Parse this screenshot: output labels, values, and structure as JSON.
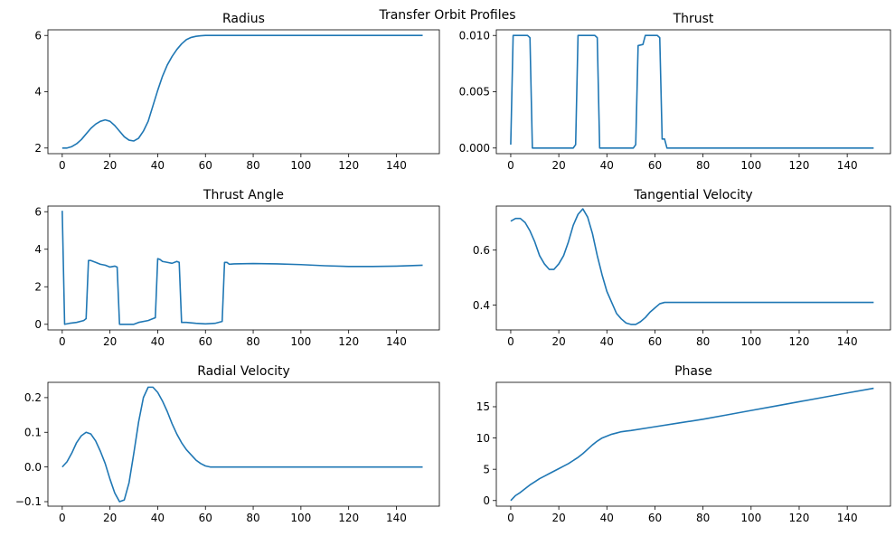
{
  "figure_title": "Transfer Orbit Profiles",
  "line_color": "#1f77b4",
  "chart_data": [
    {
      "type": "line",
      "title": "Radius",
      "xlim": [
        -6,
        158
      ],
      "ylim": [
        1.8,
        6.2
      ],
      "xticks": [
        0,
        20,
        40,
        60,
        80,
        100,
        120,
        140
      ],
      "yticks": [
        2,
        4,
        6
      ],
      "ytick_labels": [
        "2",
        "4",
        "6"
      ],
      "series": [
        {
          "name": "Radius",
          "x": [
            0,
            2,
            4,
            6,
            8,
            10,
            12,
            14,
            16,
            18,
            20,
            22,
            24,
            26,
            28,
            30,
            32,
            34,
            36,
            38,
            40,
            42,
            44,
            46,
            48,
            50,
            52,
            54,
            56,
            58,
            60,
            62,
            64,
            70,
            80,
            100,
            120,
            140,
            151
          ],
          "y": [
            2.0,
            2.0,
            2.05,
            2.15,
            2.3,
            2.5,
            2.7,
            2.85,
            2.95,
            3.0,
            2.95,
            2.8,
            2.6,
            2.4,
            2.28,
            2.25,
            2.35,
            2.6,
            2.95,
            3.5,
            4.05,
            4.55,
            4.95,
            5.25,
            5.5,
            5.7,
            5.85,
            5.93,
            5.97,
            5.99,
            6.0,
            6.0,
            6.0,
            6.0,
            6.0,
            6.0,
            6.0,
            6.0,
            6.0
          ]
        }
      ]
    },
    {
      "type": "line",
      "title": "Thrust",
      "xlim": [
        -6,
        158
      ],
      "ylim": [
        -0.0005,
        0.0105
      ],
      "xticks": [
        0,
        20,
        40,
        60,
        80,
        100,
        120,
        140
      ],
      "yticks": [
        0,
        0.005,
        0.01
      ],
      "ytick_labels": [
        "0.000",
        "0.005",
        "0.010"
      ],
      "series": [
        {
          "name": "Thrust",
          "x": [
            0,
            1,
            2,
            7,
            8,
            9,
            26,
            27,
            28,
            35,
            36,
            37,
            51,
            52,
            53,
            55,
            56,
            57,
            61,
            62,
            63,
            64,
            65,
            70,
            100,
            151
          ],
          "y": [
            0.0003,
            0.01,
            0.01,
            0.01,
            0.0098,
            0.0,
            0.0,
            0.0003,
            0.01,
            0.01,
            0.0098,
            0.0,
            0.0,
            0.0003,
            0.0091,
            0.0092,
            0.01,
            0.01,
            0.01,
            0.0098,
            0.0008,
            0.0008,
            0.0,
            0.0,
            0.0,
            0.0
          ]
        }
      ]
    },
    {
      "type": "line",
      "title": "Thrust Angle",
      "xlim": [
        -6,
        158
      ],
      "ylim": [
        -0.3,
        6.3
      ],
      "xticks": [
        0,
        20,
        40,
        60,
        80,
        100,
        120,
        140
      ],
      "yticks": [
        0,
        2,
        4,
        6
      ],
      "ytick_labels": [
        "0",
        "2",
        "4",
        "6"
      ],
      "series": [
        {
          "name": "Thrust Angle",
          "x": [
            0,
            1,
            3,
            6,
            9,
            10,
            11,
            12,
            14,
            16,
            18,
            20,
            22,
            23,
            24,
            25,
            28,
            30,
            32,
            36,
            38,
            39,
            40,
            41,
            42,
            44,
            46,
            48,
            49,
            50,
            52,
            56,
            60,
            64,
            67,
            68,
            69,
            70,
            72,
            80,
            90,
            100,
            110,
            120,
            130,
            140,
            151
          ],
          "y": [
            6.05,
            0.0,
            0.05,
            0.1,
            0.2,
            0.3,
            3.4,
            3.4,
            3.3,
            3.2,
            3.15,
            3.05,
            3.1,
            3.05,
            0.0,
            0.0,
            0.0,
            0.0,
            0.1,
            0.2,
            0.3,
            0.35,
            3.5,
            3.45,
            3.35,
            3.3,
            3.25,
            3.35,
            3.3,
            0.1,
            0.1,
            0.05,
            0.02,
            0.05,
            0.15,
            3.3,
            3.3,
            3.2,
            3.22,
            3.24,
            3.22,
            3.18,
            3.12,
            3.08,
            3.08,
            3.1,
            3.15
          ]
        }
      ]
    },
    {
      "type": "line",
      "title": "Tangential Velocity",
      "xlim": [
        -6,
        158
      ],
      "ylim": [
        0.31,
        0.76
      ],
      "xticks": [
        0,
        20,
        40,
        60,
        80,
        100,
        120,
        140
      ],
      "yticks": [
        0.4,
        0.6
      ],
      "ytick_labels": [
        "0.4",
        "0.6"
      ],
      "series": [
        {
          "name": "Tangential Velocity",
          "x": [
            0,
            1,
            2,
            4,
            6,
            8,
            10,
            12,
            14,
            16,
            18,
            20,
            22,
            24,
            26,
            28,
            30,
            32,
            34,
            36,
            38,
            40,
            42,
            44,
            46,
            48,
            50,
            52,
            54,
            56,
            58,
            60,
            62,
            64,
            70,
            100,
            151
          ],
          "y": [
            0.705,
            0.71,
            0.715,
            0.715,
            0.7,
            0.67,
            0.63,
            0.58,
            0.55,
            0.53,
            0.53,
            0.55,
            0.58,
            0.63,
            0.69,
            0.73,
            0.75,
            0.72,
            0.66,
            0.58,
            0.51,
            0.45,
            0.41,
            0.37,
            0.35,
            0.335,
            0.33,
            0.33,
            0.34,
            0.355,
            0.375,
            0.39,
            0.405,
            0.41,
            0.41,
            0.41,
            0.41
          ]
        }
      ]
    },
    {
      "type": "line",
      "title": "Radial Velocity",
      "xlim": [
        -6,
        158
      ],
      "ylim": [
        -0.113,
        0.244
      ],
      "xticks": [
        0,
        20,
        40,
        60,
        80,
        100,
        120,
        140
      ],
      "yticks": [
        -0.1,
        0,
        0.1,
        0.2
      ],
      "ytick_labels": [
        "−0.1",
        "0.0",
        "0.1",
        "0.2"
      ],
      "series": [
        {
          "name": "Radial Velocity",
          "x": [
            0,
            2,
            4,
            6,
            8,
            10,
            12,
            14,
            16,
            18,
            20,
            22,
            24,
            26,
            28,
            30,
            32,
            34,
            36,
            38,
            40,
            42,
            44,
            46,
            48,
            50,
            52,
            54,
            56,
            58,
            60,
            62,
            64,
            66,
            70,
            100,
            151
          ],
          "y": [
            0.0,
            0.015,
            0.04,
            0.07,
            0.09,
            0.1,
            0.095,
            0.075,
            0.045,
            0.01,
            -0.035,
            -0.075,
            -0.1,
            -0.095,
            -0.045,
            0.04,
            0.13,
            0.2,
            0.23,
            0.23,
            0.215,
            0.19,
            0.16,
            0.125,
            0.095,
            0.07,
            0.05,
            0.035,
            0.02,
            0.01,
            0.003,
            0.0,
            0.0,
            0.0,
            0.0,
            0.0,
            0.0
          ]
        }
      ]
    },
    {
      "type": "line",
      "title": "Phase",
      "xlim": [
        -6,
        158
      ],
      "ylim": [
        -0.9,
        18.9
      ],
      "xticks": [
        0,
        20,
        40,
        60,
        80,
        100,
        120,
        140
      ],
      "yticks": [
        0,
        5,
        10,
        15
      ],
      "ytick_labels": [
        "0",
        "5",
        "10",
        "15"
      ],
      "series": [
        {
          "name": "Phase",
          "x": [
            0,
            2,
            4,
            6,
            8,
            10,
            12,
            14,
            16,
            18,
            20,
            22,
            24,
            26,
            28,
            30,
            32,
            34,
            36,
            38,
            40,
            42,
            44,
            46,
            48,
            50,
            60,
            70,
            80,
            90,
            100,
            110,
            120,
            130,
            140,
            151
          ],
          "y": [
            0.0,
            0.8,
            1.3,
            1.9,
            2.5,
            3.0,
            3.5,
            3.9,
            4.3,
            4.7,
            5.1,
            5.5,
            5.9,
            6.4,
            6.9,
            7.5,
            8.2,
            8.9,
            9.5,
            10.0,
            10.3,
            10.6,
            10.8,
            11.0,
            11.1,
            11.2,
            11.8,
            12.4,
            13.0,
            13.7,
            14.4,
            15.1,
            15.8,
            16.5,
            17.2,
            17.95
          ]
        }
      ]
    }
  ]
}
